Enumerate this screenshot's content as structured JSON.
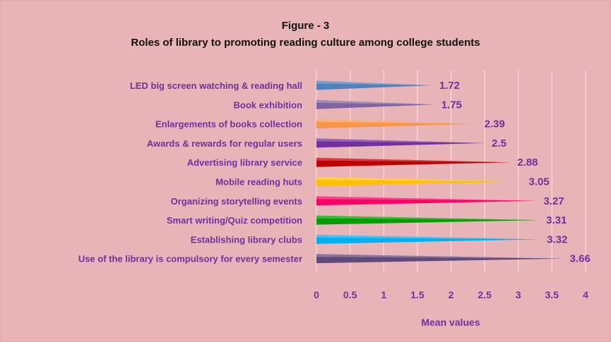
{
  "chart_data": {
    "type": "bar",
    "title": [
      "Figure - 3",
      "Roles of library to promoting reading culture among college students"
    ],
    "xlabel": "Mean values",
    "ylabel": "",
    "xlim": [
      0,
      4
    ],
    "ticks": [
      "0",
      "0.5",
      "1",
      "1.5",
      "2",
      "2.5",
      "3",
      "3.5",
      "4"
    ],
    "grid": true,
    "orientation": "horizontal",
    "categories": [
      "LED big screen watching & reading hall",
      "Book exhibition",
      "Enlargements of books collection",
      "Awards & rewards for regular users",
      "Advertising library service",
      "Mobile reading huts",
      "Organizing storytelling events",
      "Smart writing/Quiz competition",
      "Establishing library clubs",
      "Use of the library is compulsory for every semester"
    ],
    "values": [
      1.72,
      1.75,
      2.39,
      2.5,
      2.88,
      3.05,
      3.27,
      3.31,
      3.32,
      3.66
    ],
    "value_labels": [
      "1.72",
      "1.75",
      "2.39",
      "2.5",
      "2.88",
      "3.05",
      "3.27",
      "3.31",
      "3.32",
      "3.66"
    ],
    "colors": [
      "#4f81bd",
      "#8064a2",
      "#f79646",
      "#7030a0",
      "#c00000",
      "#ffc000",
      "#ff0066",
      "#00a000",
      "#00b0f0",
      "#604a7b"
    ],
    "label_color": "#7030a0",
    "background": "#e8b4b8"
  }
}
